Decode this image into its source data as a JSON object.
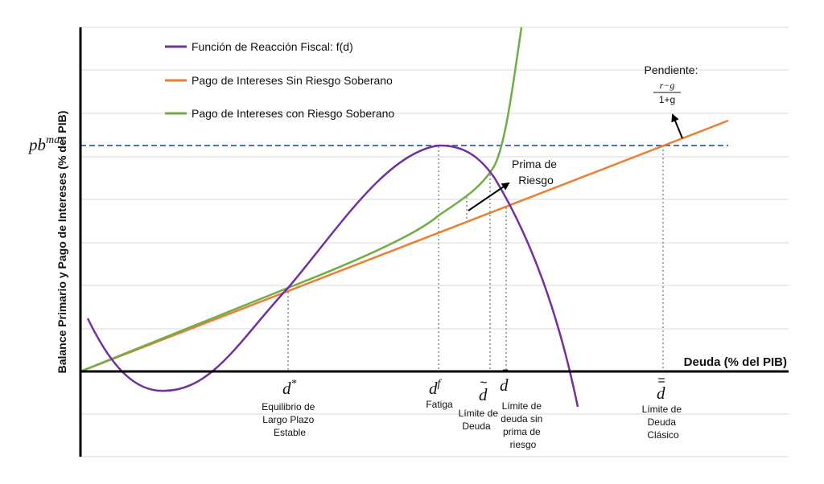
{
  "legend": {
    "fiscal": "Función de Reacción Fiscal: f(d)",
    "no_risk": "Pago de Intereses Sin Riesgo Soberano",
    "risk": "Pago de Intereses con Riesgo Soberano"
  },
  "axes": {
    "x_label": "Deuda (% del PIB)",
    "y_label": "Balance Primario y Pago de Intereses (% del PIB)"
  },
  "pb_max": {
    "base": "pb",
    "sup": "max"
  },
  "markers": {
    "d_star": {
      "base": "d",
      "sup": "*",
      "caption": [
        "Equilibrio de",
        "Largo Plazo",
        "Estable"
      ]
    },
    "d_f": {
      "base": "d",
      "sup": "f",
      "caption": [
        "Fatiga"
      ]
    },
    "d_tilde": {
      "base": "d",
      "accent": "~",
      "caption": [
        "Límite de",
        "Deuda"
      ]
    },
    "d_bar": {
      "base": "d",
      "accent": "‾",
      "caption": [
        "Límite de",
        "deuda sin",
        "prima de",
        "riesgo"
      ]
    },
    "d_dbar": {
      "base": "d",
      "accent": "=",
      "caption": [
        "Límite de",
        "Deuda",
        "Clásico"
      ]
    }
  },
  "annotations": {
    "risk_premium": [
      "Prima de",
      "Riesgo"
    ],
    "slope_title": "Pendiente:",
    "slope_num": "r−g",
    "slope_den": "1+g"
  },
  "colors": {
    "fiscal": "#7030a0",
    "no_risk": "#ed7d31",
    "risk": "#70ad47",
    "pb_line": "#4472c4",
    "grid": "#d9d9d9",
    "guide": "#a6a6a6"
  }
}
